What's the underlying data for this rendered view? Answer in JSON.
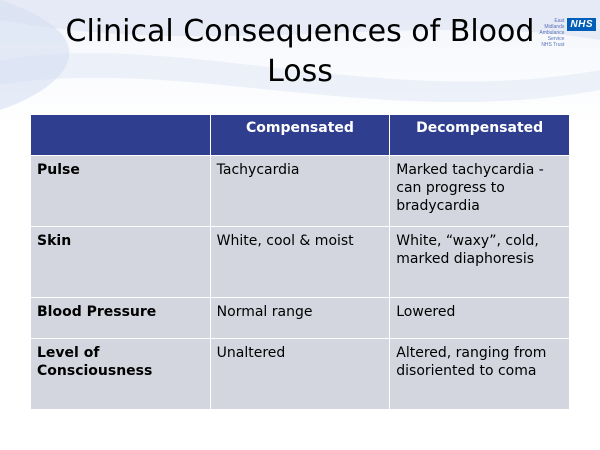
{
  "slide": {
    "title": "Clinical Consequences of Blood Loss",
    "logo": {
      "org_text": "East Midlands Ambulance Service NHS Trust",
      "badge": "NHS"
    }
  },
  "table": {
    "headers": [
      "",
      "Compensated",
      "Decompensated"
    ],
    "rows": [
      {
        "label": "Pulse",
        "compensated": "Tachycardia",
        "decompensated": "Marked tachycardia  - can progress to bradycardia"
      },
      {
        "label": "Skin",
        "compensated": "White, cool & moist",
        "decompensated": "White, “waxy”, cold, marked diaphoresis"
      },
      {
        "label": "Blood Pressure",
        "compensated": "Normal range",
        "decompensated": "Lowered"
      },
      {
        "label": "Level of Consciousness",
        "compensated": "Unaltered",
        "decompensated": "Altered, ranging from disoriented to coma"
      }
    ]
  },
  "colors": {
    "header_bg": "#2f3e8f",
    "cell_bg": "#d3d6df",
    "nhs_blue": "#005eb8"
  }
}
